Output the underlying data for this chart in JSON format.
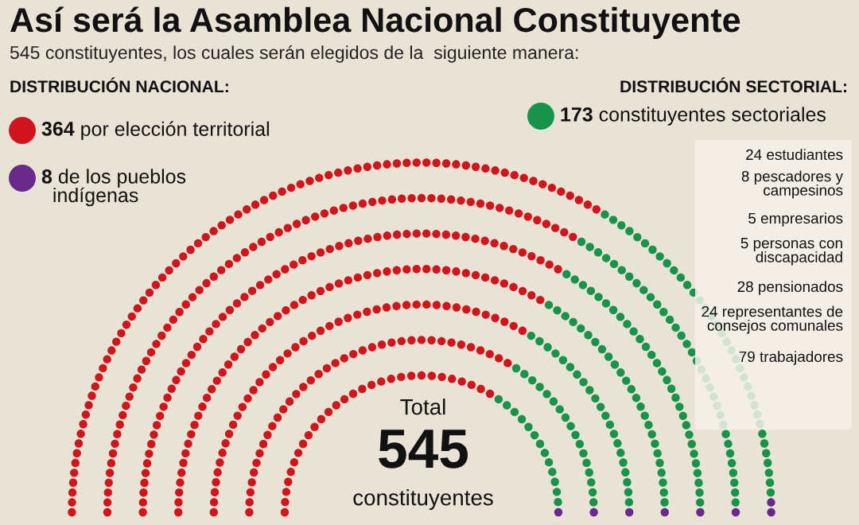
{
  "chart_data": {
    "type": "other",
    "title": "Así será la Asamblea Nacional Constituyente",
    "subtitle": "545 constituyentes, los cuales serán elegidos de la  siguiente manera:",
    "categories": [
      "por elección territorial",
      "de los pueblos\nindígenas",
      "constituyentes sectoriales"
    ],
    "values": [
      364,
      8,
      173
    ],
    "value_labels": [
      "364",
      "8",
      "173"
    ],
    "colors": [
      "#d0161c",
      "#6a2a8c",
      "#18934a"
    ],
    "annotations": [
      "DISTRIBUCIÓN NACIONAL:",
      "DISTRIBUCIÓN SECTORIAL:",
      "24 estudiantes",
      "8 pescadores y\ncampesinos",
      "5 empresarios",
      "5 personas con\ndiscapacidad",
      "28 pensionados",
      "24 representantes de\nconsejos comunales",
      "79 trabajadores",
      "Total",
      "545",
      "constituyentes"
    ]
  }
}
